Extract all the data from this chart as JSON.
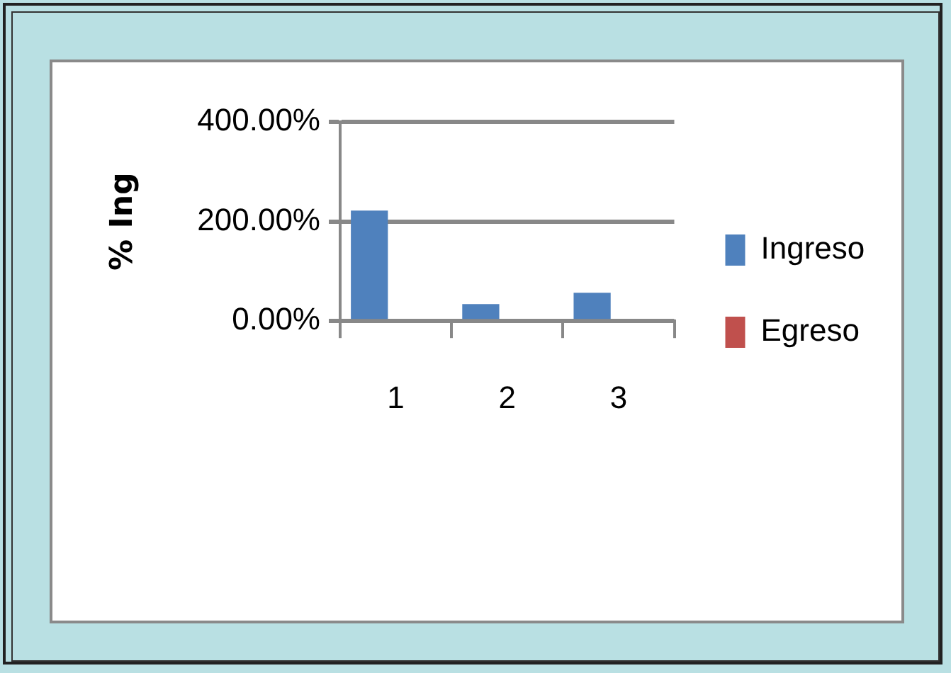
{
  "chart_data": {
    "type": "bar",
    "ylabel": "% Ing",
    "categories": [
      "1",
      "2",
      "3"
    ],
    "series": [
      {
        "name": "Ingreso",
        "color": "#4f81bd",
        "values": [
          222,
          34,
          57
        ]
      },
      {
        "name": "Egreso",
        "color": "#c0504d",
        "values": [
          0,
          0,
          0
        ]
      }
    ],
    "ylim": [
      0,
      400
    ],
    "yticks": [
      {
        "value": 0,
        "label": "0.00%"
      },
      {
        "value": 200,
        "label": "200.00%"
      },
      {
        "value": 400,
        "label": "400.00%"
      }
    ],
    "grid": "y",
    "legend": "right"
  }
}
